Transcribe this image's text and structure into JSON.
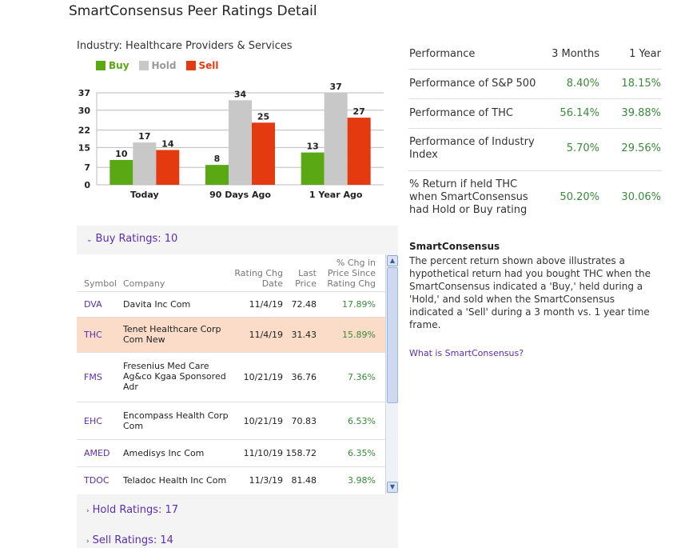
{
  "page_title": "SmartConsensus Peer Ratings Detail",
  "industry_label": "Industry: Healthcare Providers & Services",
  "colors": {
    "buy": "#5aa814",
    "hold": "#c8c8c8",
    "sell": "#e33a10",
    "link": "#5a2eb0",
    "positive": "#3a8a3a"
  },
  "legend": {
    "buy": "Buy",
    "hold": "Hold",
    "sell": "Sell"
  },
  "chart_data": {
    "type": "bar",
    "categories": [
      "Today",
      "90 Days Ago",
      "1 Year Ago"
    ],
    "series": [
      {
        "name": "Buy",
        "values": [
          10,
          8,
          13
        ]
      },
      {
        "name": "Hold",
        "values": [
          17,
          34,
          37
        ]
      },
      {
        "name": "Sell",
        "values": [
          14,
          25,
          27
        ]
      }
    ],
    "yticks": [
      0,
      7,
      15,
      22,
      30,
      37
    ],
    "ylim": [
      0,
      37
    ],
    "legend_position": "top-left",
    "grid": true
  },
  "buy_section": {
    "label": "Buy Ratings: 10",
    "expanded": true
  },
  "hold_section": {
    "label": "Hold Ratings: 17"
  },
  "sell_section": {
    "label": "Sell Ratings: 14"
  },
  "table": {
    "headers": {
      "symbol": "Symbol",
      "company": "Company",
      "rating_chg_1": "Rating Chg",
      "rating_chg_2": "Date",
      "last_1": "Last",
      "last_2": "Price",
      "pct_1": "% Chg in",
      "pct_2": "Price Since",
      "pct_3": "Rating Chg"
    },
    "rows": [
      {
        "symbol": "DVA",
        "company": "Davita Inc Com",
        "date": "11/4/19",
        "price": "72.48",
        "pct": "17.89%"
      },
      {
        "symbol": "THC",
        "company": "Tenet Healthcare Corp Com New",
        "date": "11/4/19",
        "price": "31.43",
        "pct": "15.89%"
      },
      {
        "symbol": "FMS",
        "company": "Fresenius Med Care Ag&co Kgaa Sponsored Adr",
        "date": "10/21/19",
        "price": "36.76",
        "pct": "7.36%"
      },
      {
        "symbol": "EHC",
        "company": "Encompass Health Corp Com",
        "date": "10/21/19",
        "price": "70.83",
        "pct": "6.53%"
      },
      {
        "symbol": "AMED",
        "company": "Amedisys Inc Com",
        "date": "11/10/19",
        "price": "158.72",
        "pct": "6.35%"
      },
      {
        "symbol": "TDOC",
        "company": "Teladoc Health Inc Com",
        "date": "11/3/19",
        "price": "81.48",
        "pct": "3.98%"
      }
    ]
  },
  "performance": {
    "header": {
      "label": "Performance",
      "col1": "3 Months",
      "col2": "1 Year"
    },
    "rows": [
      {
        "label": "Performance of S&P 500",
        "m3": "8.40%",
        "y1": "18.15%"
      },
      {
        "label": "Performance of THC",
        "m3": "56.14%",
        "y1": "39.88%"
      },
      {
        "label": "Performance of Industry Index",
        "m3": "5.70%",
        "y1": "29.56%"
      },
      {
        "label": "% Return if held THC when SmartConsensus had Hold or Buy rating",
        "m3": "50.20%",
        "y1": "30.06%"
      }
    ]
  },
  "smartconsensus": {
    "title": "SmartConsensus",
    "text": "The percent return shown above illustrates a hypothetical return had you bought THC when the SmartConsensus indicated a 'Buy,' held during a 'Hold,' and sold when the SmartConsensus indicated a 'Sell' during a 3 month vs. 1 year time frame.",
    "link": "What is SmartConsensus?"
  }
}
